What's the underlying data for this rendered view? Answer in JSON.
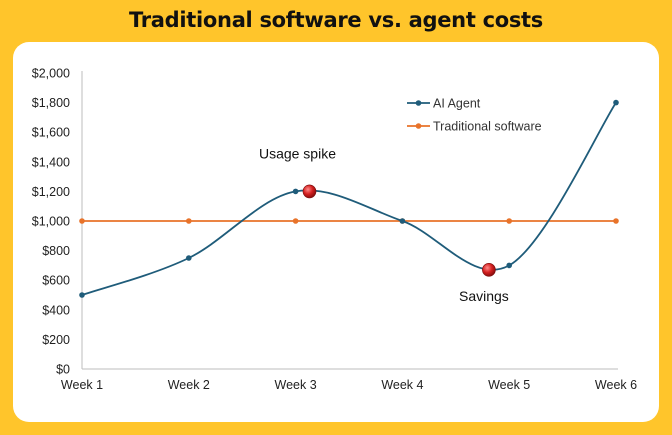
{
  "title": "Traditional software vs. agent costs",
  "chart_data": {
    "type": "line",
    "categories": [
      "Week 1",
      "Week 2",
      "Week 3",
      "Week 4",
      "Week 5",
      "Week 6"
    ],
    "series": [
      {
        "name": "AI Agent",
        "values": [
          500,
          750,
          1200,
          1000,
          700,
          1800
        ],
        "color": "#1F5C7A",
        "smooth": true
      },
      {
        "name": "Traditional software",
        "values": [
          1000,
          1000,
          1000,
          1000,
          1000,
          1000
        ],
        "color": "#E8732A",
        "smooth": false
      }
    ],
    "ylim": [
      0,
      2000
    ],
    "yticks": [
      0,
      200,
      400,
      600,
      800,
      1000,
      1200,
      1400,
      1600,
      1800,
      2000
    ],
    "ytick_labels": [
      "$0",
      "$200",
      "$400",
      "$600",
      "$800",
      "$1,000",
      "$1,200",
      "$1,400",
      "$1,600",
      "$1,800",
      "$2,000"
    ],
    "grid": false,
    "legend": "top-right",
    "annotations": [
      {
        "text": "Usage spike",
        "x": 3.13,
        "y": 1200
      },
      {
        "text": "Savings",
        "x": 4.81,
        "y": 670
      }
    ],
    "marker_color": "#D42020"
  }
}
